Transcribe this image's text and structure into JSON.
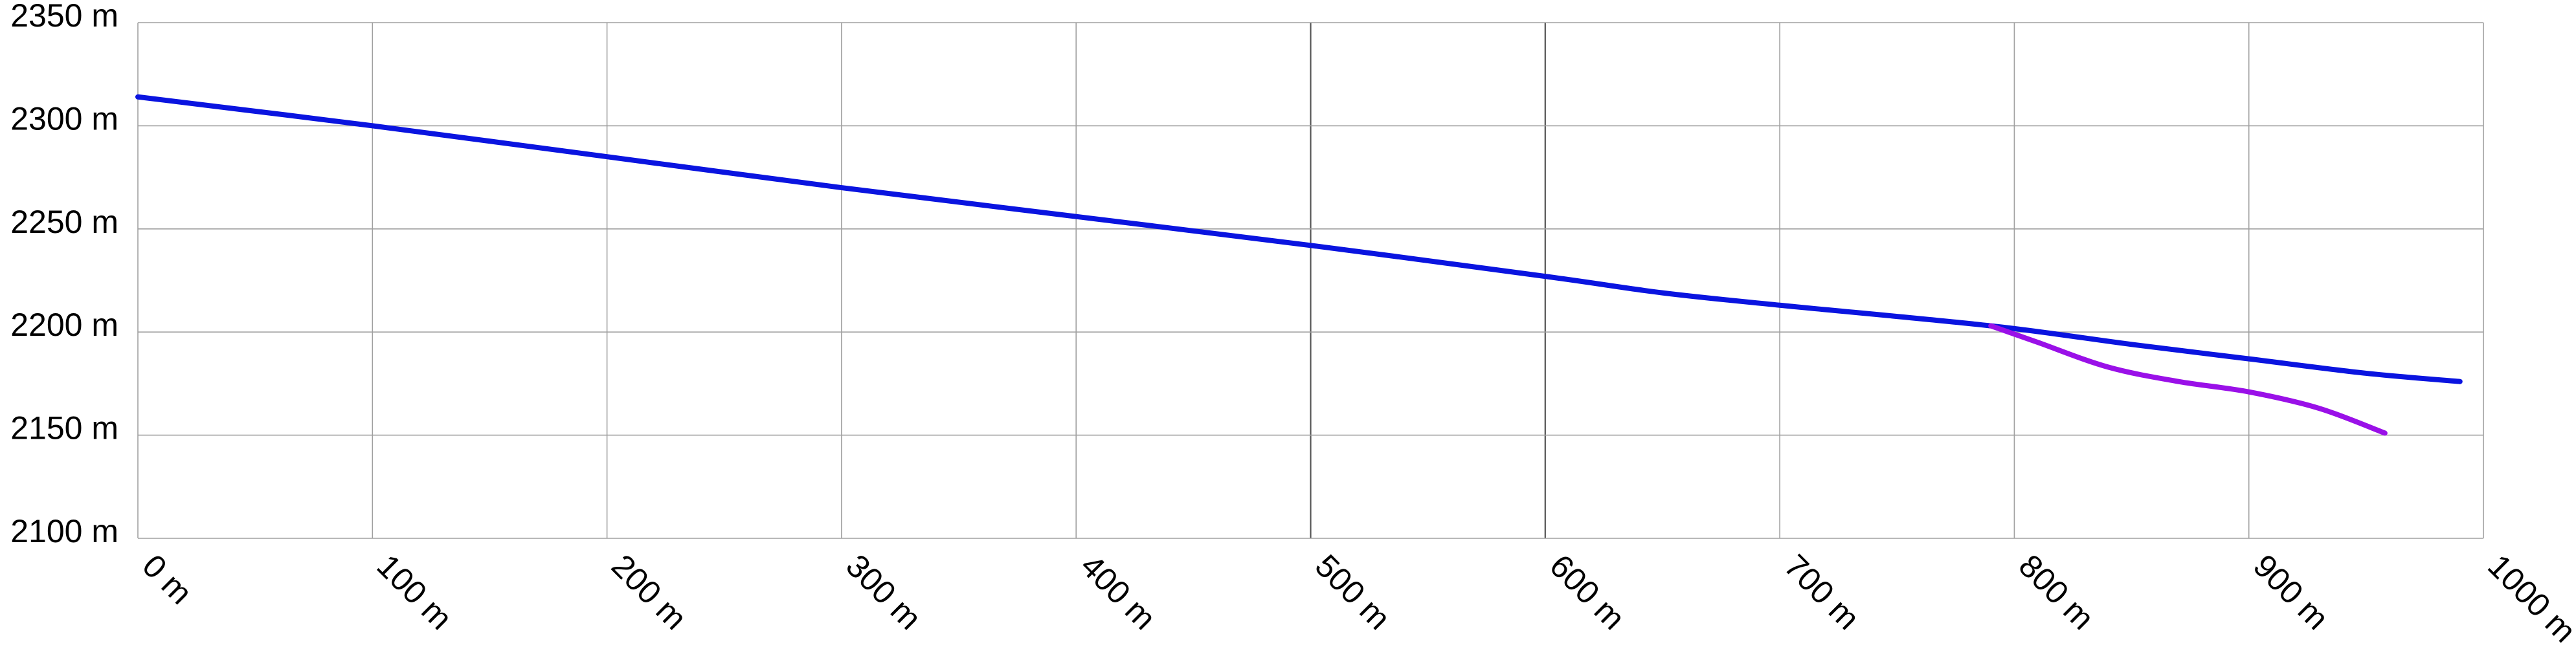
{
  "chart_data": {
    "type": "line",
    "title": "",
    "xlabel": "",
    "ylabel": "",
    "xlim": [
      0,
      1000
    ],
    "ylim": [
      2100,
      2350
    ],
    "grid": true,
    "x_ticks": [
      {
        "value": 0,
        "label": "0 m"
      },
      {
        "value": 100,
        "label": "100 m"
      },
      {
        "value": 200,
        "label": "200 m"
      },
      {
        "value": 300,
        "label": "300 m"
      },
      {
        "value": 400,
        "label": "400 m"
      },
      {
        "value": 500,
        "label": "500 m"
      },
      {
        "value": 600,
        "label": "600 m"
      },
      {
        "value": 700,
        "label": "700 m"
      },
      {
        "value": 800,
        "label": "800 m"
      },
      {
        "value": 900,
        "label": "900 m"
      },
      {
        "value": 1000,
        "label": "1000 m"
      }
    ],
    "y_ticks": [
      {
        "value": 2350,
        "label": "2350 m"
      },
      {
        "value": 2300,
        "label": "2300 m"
      },
      {
        "value": 2250,
        "label": "2250 m"
      },
      {
        "value": 2200,
        "label": "2200 m"
      },
      {
        "value": 2150,
        "label": "2150 m"
      },
      {
        "value": 2100,
        "label": "2100 m"
      }
    ],
    "series": [
      {
        "color": "#0a14e0",
        "x": [
          0,
          100,
          200,
          300,
          400,
          500,
          600,
          650,
          700,
          790,
          850,
          900,
          950,
          990
        ],
        "y": [
          2314,
          2300,
          2285,
          2270,
          2256,
          2242,
          2227,
          2219,
          2213,
          2203,
          2194,
          2187,
          2180,
          2176
        ]
      },
      {
        "color": "#9a10e8",
        "x": [
          790,
          810,
          840,
          870,
          900,
          930,
          958
        ],
        "y": [
          2203,
          2195,
          2183,
          2176,
          2171,
          2163,
          2151
        ]
      }
    ]
  }
}
